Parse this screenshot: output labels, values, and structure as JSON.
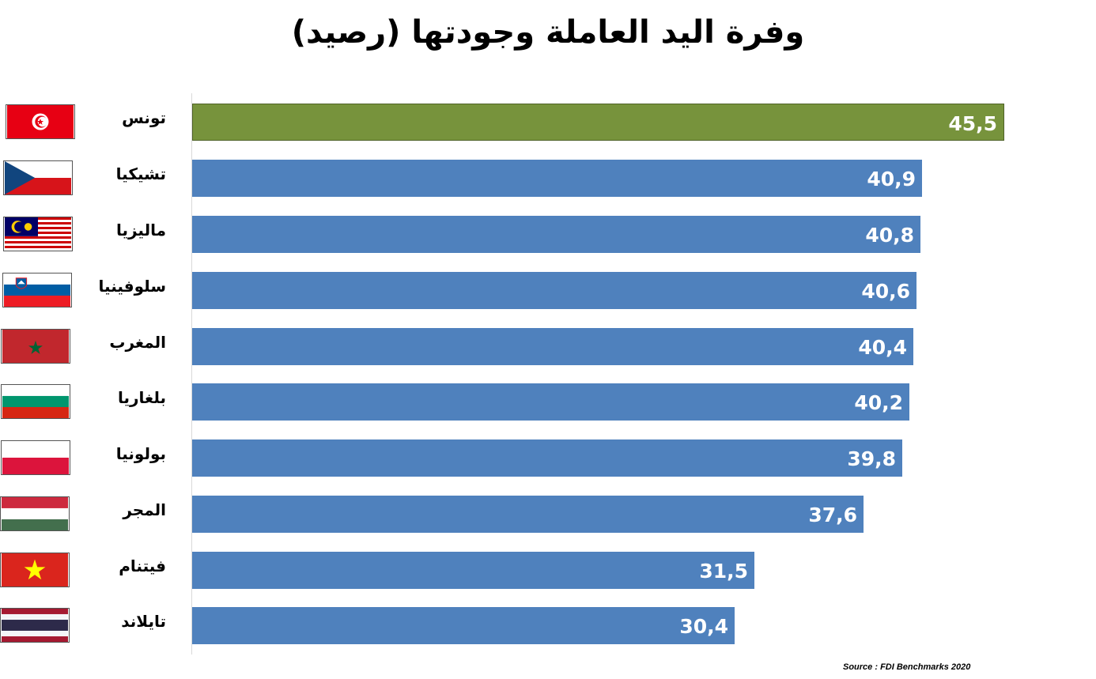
{
  "chart_data": {
    "type": "bar",
    "orientation": "horizontal",
    "title": "وفرة اليد العاملة وجودتها (رصيد)",
    "categories": [
      "تونس",
      "تشيكيا",
      "ماليزيا",
      "سلوفينيا",
      "المغرب",
      "بلغاريا",
      "بولونيا",
      "المجر",
      "فيتنام",
      "تايلاند"
    ],
    "values": [
      45.5,
      40.9,
      40.8,
      40.6,
      40.4,
      40.2,
      39.8,
      37.6,
      31.5,
      30.4
    ],
    "value_labels": [
      "45,5",
      "40,9",
      "40,8",
      "40,6",
      "40,4",
      "40,2",
      "39,8",
      "37,6",
      "31,5",
      "30,4"
    ],
    "flags": [
      "tunisia-flag-icon",
      "czechia-flag-icon",
      "malaysia-flag-icon",
      "slovenia-flag-icon",
      "morocco-flag-icon",
      "bulgaria-flag-icon",
      "poland-flag-icon",
      "hungary-flag-icon",
      "vietnam-flag-icon",
      "thailand-flag-icon"
    ],
    "colors": {
      "highlight": "#77933C",
      "default": "#4F81BD"
    },
    "highlight_category": "تونس",
    "xlim": [
      0,
      45.5
    ],
    "grid": false,
    "legend": "none"
  },
  "source": "Source : FDI Benchmarks 2020"
}
